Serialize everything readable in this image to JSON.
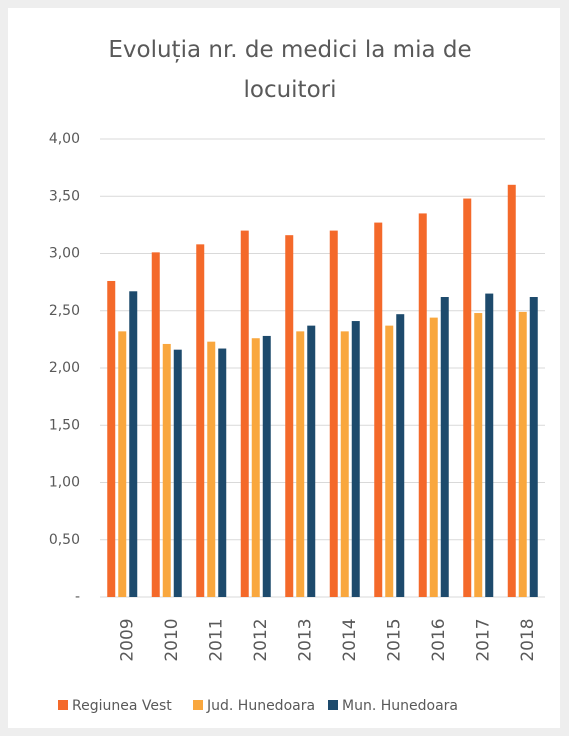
{
  "chart_data": {
    "type": "bar",
    "title": "Evoluția nr. de medici la mia de locuitori",
    "categories": [
      "2009",
      "2010",
      "2011",
      "2012",
      "2013",
      "2014",
      "2015",
      "2016",
      "2017",
      "2018"
    ],
    "series": [
      {
        "name": "Regiunea Vest",
        "color": "#f4692a",
        "values": [
          2.76,
          3.01,
          3.08,
          3.2,
          3.16,
          3.2,
          3.27,
          3.35,
          3.48,
          3.6
        ]
      },
      {
        "name": "Jud. Hunedoara",
        "color": "#f9a73e",
        "values": [
          2.32,
          2.21,
          2.23,
          2.26,
          2.32,
          2.32,
          2.37,
          2.44,
          2.48,
          2.49
        ]
      },
      {
        "name": "Mun. Hunedoara",
        "color": "#1d4a6c",
        "values": [
          2.67,
          2.16,
          2.17,
          2.28,
          2.37,
          2.41,
          2.47,
          2.62,
          2.65,
          2.62
        ]
      }
    ],
    "ylim": [
      0,
      4
    ],
    "yticks": [
      {
        "value": 0,
        "label": "-"
      },
      {
        "value": 0.5,
        "label": "0,50"
      },
      {
        "value": 1,
        "label": "1,00"
      },
      {
        "value": 1.5,
        "label": "1,50"
      },
      {
        "value": 2,
        "label": "2,00"
      },
      {
        "value": 2.5,
        "label": "2,50"
      },
      {
        "value": 3,
        "label": "3,00"
      },
      {
        "value": 3.5,
        "label": "3,50"
      },
      {
        "value": 4,
        "label": "4,00"
      }
    ],
    "grid": true,
    "legend": "bottom"
  }
}
